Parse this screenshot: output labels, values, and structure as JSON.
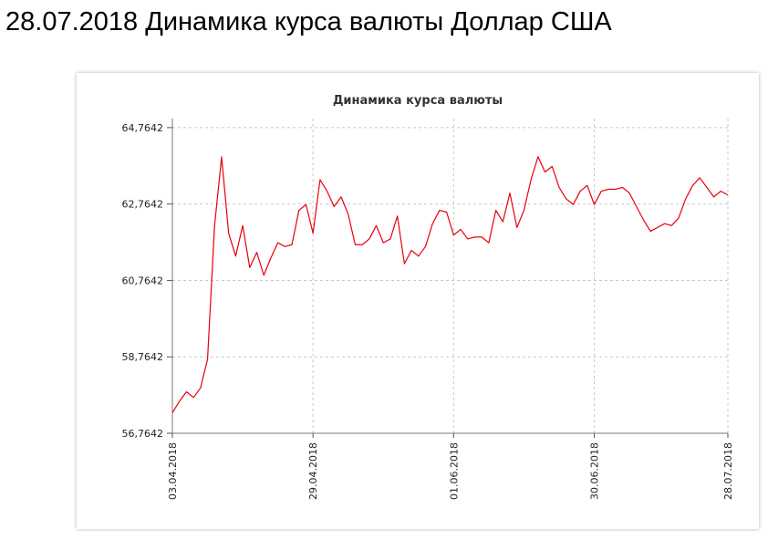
{
  "page": {
    "title": "28.07.2018 Динамика курса валюты Доллар США"
  },
  "chart_data": {
    "type": "line",
    "title": "Динамика курса валюты",
    "xlabel": "",
    "ylabel": "",
    "grid": true,
    "legend": "none",
    "line_color": "#e8000b",
    "y_ticks": [
      56.7642,
      58.7642,
      60.7642,
      62.7642,
      64.7642
    ],
    "y_tick_labels": [
      "56,7642",
      "58,7642",
      "60,7642",
      "62,7642",
      "64,7642"
    ],
    "ylim": [
      56.7642,
      65.0
    ],
    "x_tick_labels": [
      "03.04.2018",
      "29.04.2018",
      "01.06.2018",
      "30.06.2018",
      "28.07.2018"
    ],
    "x_tick_positions": [
      0,
      20,
      40,
      60,
      79
    ],
    "xlim": [
      0,
      79
    ],
    "x": [
      0,
      1,
      2,
      3,
      4,
      5,
      6,
      7,
      8,
      9,
      10,
      11,
      12,
      13,
      14,
      15,
      16,
      17,
      18,
      19,
      20,
      21,
      22,
      23,
      24,
      25,
      26,
      27,
      28,
      29,
      30,
      31,
      32,
      33,
      34,
      35,
      36,
      37,
      38,
      39,
      40,
      41,
      42,
      43,
      44,
      45,
      46,
      47,
      48,
      49,
      50,
      51,
      52,
      53,
      54,
      55,
      56,
      57,
      58,
      59,
      60,
      61,
      62,
      63,
      64,
      65,
      66,
      67,
      68,
      69,
      70,
      71,
      72,
      73,
      74,
      75,
      76,
      77,
      78,
      79
    ],
    "values": [
      57.3,
      57.6,
      57.85,
      57.7,
      57.95,
      58.7,
      62.2,
      64.0,
      62.0,
      61.4,
      62.2,
      61.1,
      61.5,
      60.9,
      61.35,
      61.75,
      61.65,
      61.7,
      62.6,
      62.75,
      62.0,
      63.4,
      63.1,
      62.7,
      62.95,
      62.5,
      61.7,
      61.7,
      61.85,
      62.2,
      61.75,
      61.85,
      62.45,
      61.2,
      61.55,
      61.4,
      61.65,
      62.25,
      62.6,
      62.55,
      61.95,
      62.1,
      61.85,
      61.9,
      61.9,
      61.75,
      62.6,
      62.3,
      63.05,
      62.15,
      62.6,
      63.4,
      64.0,
      63.6,
      63.75,
      63.2,
      62.9,
      62.75,
      63.1,
      63.25,
      62.75,
      63.1,
      63.15,
      63.15,
      63.2,
      63.05,
      62.7,
      62.35,
      62.05,
      62.15,
      62.25,
      62.2,
      62.4,
      62.9,
      63.25,
      63.45,
      63.2,
      62.95,
      63.1,
      63.0
    ]
  }
}
